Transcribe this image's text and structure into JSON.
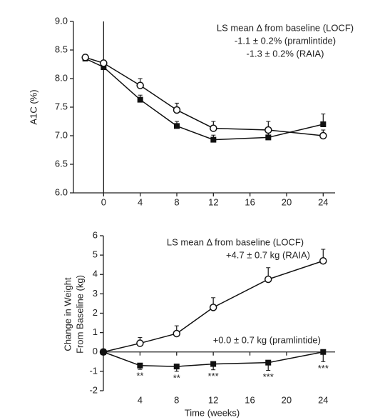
{
  "chart_data": [
    {
      "type": "line",
      "y_label": "A1C (%)",
      "annotations": [
        "LS mean Δ from baseline (LOCF)",
        "-1.1 ± 0.2% (pramlintide)",
        "-1.3 ± 0.2% (RAIA)"
      ],
      "xlim": [
        -3.3,
        25.3
      ],
      "xticks": [
        0,
        4,
        8,
        12,
        16,
        20,
        24
      ],
      "ylim": [
        6,
        9
      ],
      "yticks": [
        {
          "value": 6,
          "label": "6.0"
        },
        {
          "value": 6.5,
          "label": "6.5"
        },
        {
          "value": 7,
          "label": "7.0"
        },
        {
          "value": 7.5,
          "label": "7.5"
        },
        {
          "value": 8,
          "label": "8.0"
        },
        {
          "value": 8.5,
          "label": "8.5"
        },
        {
          "value": 9,
          "label": "9.0"
        }
      ],
      "reference_x": 0,
      "x": [
        -2,
        0,
        4,
        8,
        12,
        18,
        24
      ],
      "series": [
        {
          "marker": "square",
          "color": "#111111",
          "error_direction": "up",
          "values": [
            8.35,
            8.2,
            7.63,
            7.17,
            6.93,
            6.97,
            7.2
          ],
          "errors": [
            0.05,
            0.05,
            0.08,
            0.08,
            0.08,
            0.08,
            0.18
          ]
        },
        {
          "marker": "circle",
          "color": "#111111",
          "error_direction": "up",
          "values": [
            8.37,
            8.27,
            7.88,
            7.45,
            7.13,
            7.1,
            7.0
          ],
          "errors": [
            0.05,
            0.05,
            0.12,
            0.12,
            0.12,
            0.15,
            0.1
          ]
        }
      ]
    },
    {
      "type": "line",
      "y_label": [
        "Change in Weight",
        "From Baseline (kg)"
      ],
      "x_label": "Time (weeks)",
      "annotations": [
        "LS mean Δ from baseline (LOCF)",
        "+4.7 ± 0.7 kg (RAIA)",
        "+0.0 ± 0.7 kg (pramlintide)"
      ],
      "xlim": [
        0,
        25.3
      ],
      "xticks": [
        4,
        8,
        12,
        16,
        20,
        24
      ],
      "ylim": [
        -2,
        6
      ],
      "yticks": [
        -2,
        -1,
        0,
        1,
        2,
        3,
        4,
        5,
        6
      ],
      "x": [
        0,
        4,
        8,
        12,
        18,
        24
      ],
      "significance": [
        null,
        "**",
        "**",
        "***",
        "***",
        "***"
      ],
      "series": [
        {
          "marker": "circle",
          "color": "#111111",
          "error_direction": "up",
          "values": [
            0,
            0.45,
            0.95,
            2.3,
            3.75,
            4.7
          ],
          "errors": [
            0.05,
            0.3,
            0.4,
            0.5,
            0.6,
            0.6
          ]
        },
        {
          "marker": "square",
          "color": "#111111",
          "error_direction": "down",
          "values": [
            0,
            -0.7,
            -0.75,
            -0.62,
            -0.55,
            0.0
          ],
          "errors": [
            0.05,
            0.2,
            0.25,
            0.3,
            0.4,
            0.5
          ]
        }
      ]
    }
  ]
}
